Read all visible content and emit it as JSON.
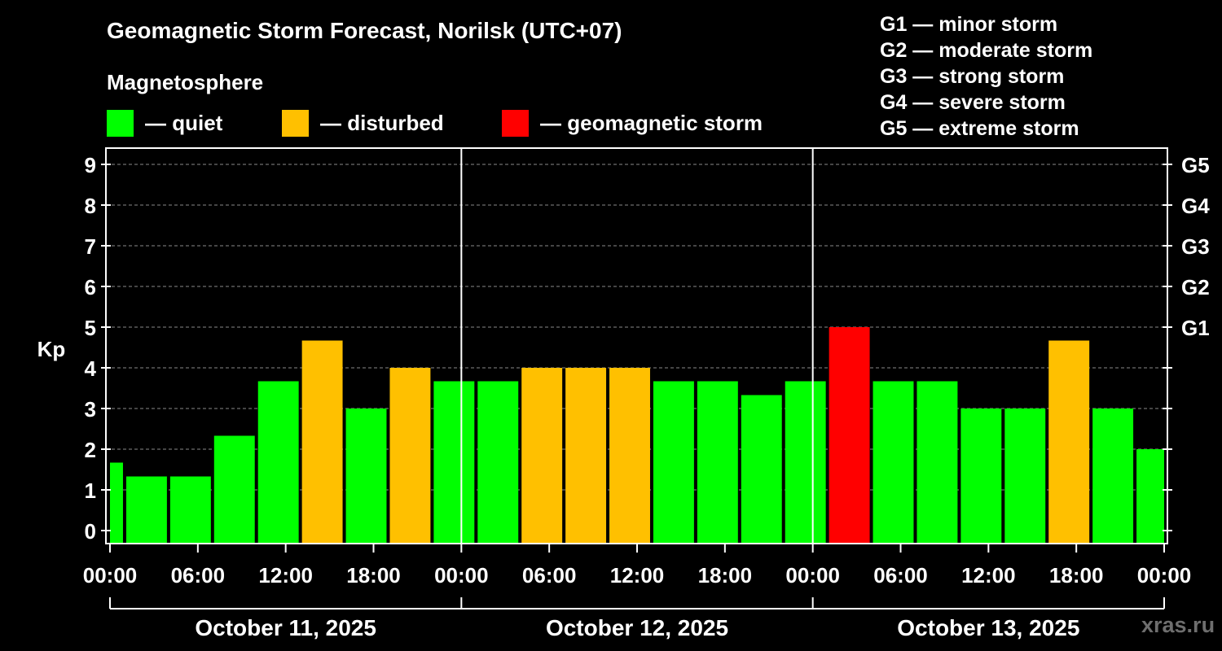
{
  "chart_data": {
    "type": "bar",
    "title": "Geomagnetic Storm Forecast, Norilsk (UTC+07)",
    "subtitle": "Magnetosphere",
    "ylabel": "Kp",
    "ylim": [
      0,
      9
    ],
    "yticks": [
      "0",
      "1",
      "2",
      "3",
      "4",
      "5",
      "6",
      "7",
      "8",
      "9"
    ],
    "right_axis_labels": [
      {
        "kp": 5,
        "label": "G1"
      },
      {
        "kp": 6,
        "label": "G2"
      },
      {
        "kp": 7,
        "label": "G3"
      },
      {
        "kp": 8,
        "label": "G4"
      },
      {
        "kp": 9,
        "label": "G5"
      }
    ],
    "x_range_hours": [
      0,
      72
    ],
    "x_tick_labels": [
      "00:00",
      "06:00",
      "12:00",
      "18:00",
      "00:00",
      "06:00",
      "12:00",
      "18:00",
      "00:00",
      "06:00",
      "12:00",
      "18:00",
      "00:00"
    ],
    "days": [
      "October 11, 2025",
      "October 12, 2025",
      "October 13, 2025"
    ],
    "legend": [
      {
        "status": "quiet",
        "label": "— quiet",
        "color": "#00ff00"
      },
      {
        "status": "disturbed",
        "label": "— disturbed",
        "color": "#ffc000"
      },
      {
        "status": "storm",
        "label": "— geomagnetic storm",
        "color": "#ff0000"
      }
    ],
    "g_scale": [
      "G1 — minor storm",
      "G2 — moderate storm",
      "G3 — strong storm",
      "G4 — severe storm",
      "G5 — extreme storm"
    ],
    "series": [
      {
        "start_hour": 0,
        "end_hour": 1,
        "kp": 1.67,
        "status": "quiet"
      },
      {
        "start_hour": 1,
        "end_hour": 4,
        "kp": 1.33,
        "status": "quiet"
      },
      {
        "start_hour": 4,
        "end_hour": 7,
        "kp": 1.33,
        "status": "quiet"
      },
      {
        "start_hour": 7,
        "end_hour": 10,
        "kp": 2.33,
        "status": "quiet"
      },
      {
        "start_hour": 10,
        "end_hour": 13,
        "kp": 3.67,
        "status": "quiet"
      },
      {
        "start_hour": 13,
        "end_hour": 16,
        "kp": 4.67,
        "status": "disturbed"
      },
      {
        "start_hour": 16,
        "end_hour": 19,
        "kp": 3.0,
        "status": "quiet"
      },
      {
        "start_hour": 19,
        "end_hour": 22,
        "kp": 4.0,
        "status": "disturbed"
      },
      {
        "start_hour": 22,
        "end_hour": 25,
        "kp": 3.67,
        "status": "quiet"
      },
      {
        "start_hour": 25,
        "end_hour": 28,
        "kp": 3.67,
        "status": "quiet"
      },
      {
        "start_hour": 28,
        "end_hour": 31,
        "kp": 4.0,
        "status": "disturbed"
      },
      {
        "start_hour": 31,
        "end_hour": 34,
        "kp": 4.0,
        "status": "disturbed"
      },
      {
        "start_hour": 34,
        "end_hour": 37,
        "kp": 4.0,
        "status": "disturbed"
      },
      {
        "start_hour": 37,
        "end_hour": 40,
        "kp": 3.67,
        "status": "quiet"
      },
      {
        "start_hour": 40,
        "end_hour": 43,
        "kp": 3.67,
        "status": "quiet"
      },
      {
        "start_hour": 43,
        "end_hour": 46,
        "kp": 3.33,
        "status": "quiet"
      },
      {
        "start_hour": 46,
        "end_hour": 49,
        "kp": 3.67,
        "status": "quiet"
      },
      {
        "start_hour": 49,
        "end_hour": 52,
        "kp": 5.0,
        "status": "storm"
      },
      {
        "start_hour": 52,
        "end_hour": 55,
        "kp": 3.67,
        "status": "quiet"
      },
      {
        "start_hour": 55,
        "end_hour": 58,
        "kp": 3.67,
        "status": "quiet"
      },
      {
        "start_hour": 58,
        "end_hour": 61,
        "kp": 3.0,
        "status": "quiet"
      },
      {
        "start_hour": 61,
        "end_hour": 64,
        "kp": 3.0,
        "status": "quiet"
      },
      {
        "start_hour": 64,
        "end_hour": 67,
        "kp": 4.67,
        "status": "disturbed"
      },
      {
        "start_hour": 67,
        "end_hour": 70,
        "kp": 3.0,
        "status": "quiet"
      },
      {
        "start_hour": 70,
        "end_hour": 72,
        "kp": 2.0,
        "status": "quiet"
      }
    ]
  },
  "watermark": "xras.ru"
}
